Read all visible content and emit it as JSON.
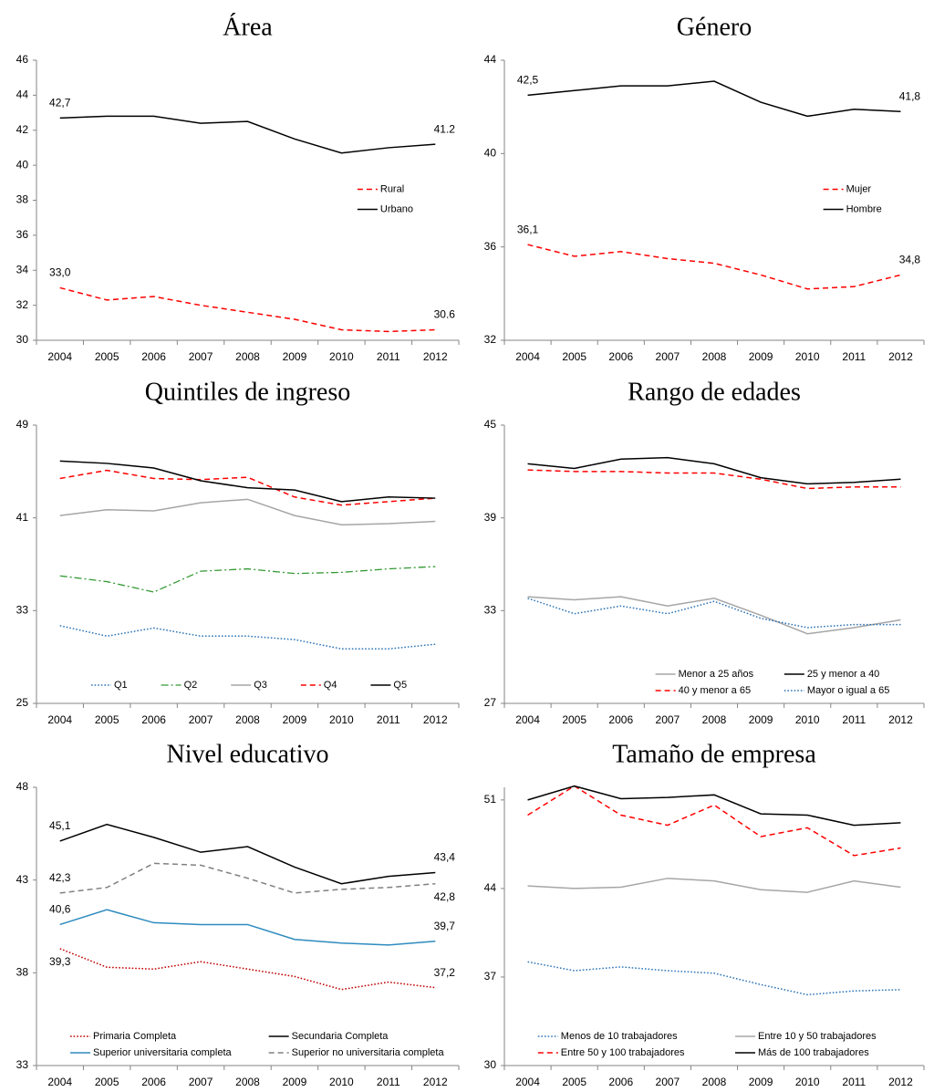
{
  "chart_data": [
    {
      "type": "line",
      "title": "Área",
      "categories": [
        "2004",
        "2005",
        "2006",
        "2007",
        "2008",
        "2009",
        "2010",
        "2011",
        "2012"
      ],
      "ylim": [
        30,
        46
      ],
      "yticks": [
        30,
        32,
        34,
        36,
        38,
        40,
        42,
        44,
        46
      ],
      "legend": "right",
      "series": [
        {
          "name": "Rural",
          "color": "#ff0000",
          "dash": "dash",
          "values": [
            33.0,
            32.3,
            32.5,
            32.0,
            31.6,
            31.2,
            30.6,
            30.5,
            30.6
          ],
          "value_labels": [
            "33,0",
            null,
            null,
            null,
            null,
            null,
            null,
            null,
            "30.6"
          ]
        },
        {
          "name": "Urbano",
          "color": "#000000",
          "dash": "solid",
          "values": [
            42.7,
            42.8,
            42.8,
            42.4,
            42.5,
            41.5,
            40.7,
            41.0,
            41.2
          ],
          "value_labels": [
            "42,7",
            null,
            null,
            null,
            null,
            null,
            null,
            null,
            "41.2"
          ]
        }
      ]
    },
    {
      "type": "line",
      "title": "Género",
      "categories": [
        "2004",
        "2005",
        "2006",
        "2007",
        "2008",
        "2009",
        "2010",
        "2011",
        "2012"
      ],
      "ylim": [
        32,
        44
      ],
      "yticks": [
        32,
        36,
        40,
        44
      ],
      "legend": "right",
      "series": [
        {
          "name": "Mujer",
          "color": "#ff0000",
          "dash": "dash",
          "values": [
            36.1,
            35.6,
            35.8,
            35.5,
            35.3,
            34.8,
            34.2,
            34.3,
            34.8
          ],
          "value_labels": [
            "36,1",
            null,
            null,
            null,
            null,
            null,
            null,
            null,
            "34,8"
          ]
        },
        {
          "name": "Hombre",
          "color": "#000000",
          "dash": "solid",
          "values": [
            42.5,
            42.7,
            42.9,
            42.9,
            43.1,
            42.2,
            41.6,
            41.9,
            41.8
          ],
          "value_labels": [
            "42,5",
            null,
            null,
            null,
            null,
            null,
            null,
            null,
            "41,8"
          ]
        }
      ]
    },
    {
      "type": "line",
      "title": "Quintiles de ingreso",
      "categories": [
        "2004",
        "2005",
        "2006",
        "2007",
        "2008",
        "2009",
        "2010",
        "2011",
        "2012"
      ],
      "ylim": [
        25,
        49
      ],
      "yticks": [
        25,
        33,
        41,
        49
      ],
      "legend": "bottom",
      "series": [
        {
          "name": "Q1",
          "color": "#2e75b6",
          "dash": "dot",
          "values": [
            31.7,
            30.8,
            31.5,
            30.8,
            30.8,
            30.5,
            29.7,
            29.7,
            30.1
          ]
        },
        {
          "name": "Q2",
          "color": "#339933",
          "dash": "dashdot",
          "values": [
            36.0,
            35.5,
            34.6,
            36.4,
            36.6,
            36.2,
            36.3,
            36.6,
            36.8
          ]
        },
        {
          "name": "Q3",
          "color": "#a6a6a6",
          "dash": "solid",
          "values": [
            41.2,
            41.7,
            41.6,
            42.3,
            42.6,
            41.2,
            40.4,
            40.5,
            40.7
          ]
        },
        {
          "name": "Q4",
          "color": "#ff0000",
          "dash": "dash",
          "values": [
            44.4,
            45.1,
            44.4,
            44.3,
            44.5,
            42.8,
            42.1,
            42.4,
            42.7
          ]
        },
        {
          "name": "Q5",
          "color": "#000000",
          "dash": "solid",
          "values": [
            45.9,
            45.7,
            45.3,
            44.2,
            43.6,
            43.4,
            42.4,
            42.8,
            42.7
          ]
        }
      ]
    },
    {
      "type": "line",
      "title": "Rango de edades",
      "categories": [
        "2004",
        "2005",
        "2006",
        "2007",
        "2008",
        "2009",
        "2010",
        "2011",
        "2012"
      ],
      "ylim": [
        27,
        45
      ],
      "yticks": [
        27,
        33,
        39,
        45
      ],
      "legend": "bottom-right",
      "series": [
        {
          "name": "Menor a 25 años",
          "color": "#a6a6a6",
          "dash": "solid",
          "values": [
            33.9,
            33.7,
            33.9,
            33.3,
            33.8,
            32.7,
            31.5,
            31.9,
            32.4
          ]
        },
        {
          "name": "25 y menor a 40",
          "color": "#000000",
          "dash": "solid",
          "values": [
            42.5,
            42.2,
            42.8,
            42.9,
            42.5,
            41.6,
            41.2,
            41.3,
            41.5
          ]
        },
        {
          "name": "40 y menor a 65",
          "color": "#ff0000",
          "dash": "dash",
          "values": [
            42.1,
            42.0,
            42.0,
            41.9,
            41.9,
            41.5,
            40.9,
            41.0,
            41.0
          ]
        },
        {
          "name": "Mayor o igual a 65",
          "color": "#2e75b6",
          "dash": "dot",
          "values": [
            33.8,
            32.8,
            33.3,
            32.8,
            33.6,
            32.5,
            31.9,
            32.1,
            32.1
          ]
        }
      ]
    },
    {
      "type": "line",
      "title": "Nivel educativo",
      "categories": [
        "2004",
        "2005",
        "2006",
        "2007",
        "2008",
        "2009",
        "2010",
        "2011",
        "2012"
      ],
      "ylim": [
        33,
        48
      ],
      "yticks": [
        33,
        38,
        43,
        48
      ],
      "legend": "bottom",
      "series": [
        {
          "name": "Primaria Completa",
          "color": "#c00000",
          "dash": "dot",
          "values": [
            39.3,
            38.3,
            38.2,
            38.6,
            38.2,
            37.8,
            37.1,
            37.5,
            37.2
          ],
          "value_labels": [
            "39,3",
            null,
            null,
            null,
            null,
            null,
            null,
            null,
            "37,2"
          ]
        },
        {
          "name": "Secundaria Completa",
          "color": "#000000",
          "dash": "solid",
          "values": [
            45.1,
            46.0,
            45.3,
            44.5,
            44.8,
            43.7,
            42.8,
            43.2,
            43.4
          ],
          "value_labels": [
            "45,1",
            null,
            null,
            null,
            null,
            null,
            null,
            null,
            "43,4"
          ]
        },
        {
          "name": "Superior universitaria completa",
          "color": "#2e8bc0",
          "dash": "solid",
          "values": [
            40.6,
            41.4,
            40.7,
            40.6,
            40.6,
            39.8,
            39.6,
            39.5,
            39.7
          ],
          "value_labels": [
            "40,6",
            null,
            null,
            null,
            null,
            null,
            null,
            null,
            "39,7"
          ]
        },
        {
          "name": "Superior no universitaria completa",
          "color": "#808080",
          "dash": "dash",
          "values": [
            42.3,
            42.6,
            43.9,
            43.8,
            43.1,
            42.3,
            42.5,
            42.6,
            42.8
          ],
          "value_labels": [
            "42,3",
            null,
            null,
            null,
            null,
            null,
            null,
            null,
            "42,8"
          ]
        }
      ]
    },
    {
      "type": "line",
      "title": "Tamaño de empresa",
      "categories": [
        "2004",
        "2005",
        "2006",
        "2007",
        "2008",
        "2009",
        "2010",
        "2011",
        "2012"
      ],
      "ylim": [
        30,
        52
      ],
      "yticks": [
        30,
        37,
        44,
        51
      ],
      "legend": "bottom",
      "series": [
        {
          "name": "Menos de 10 trabajadores",
          "color": "#2e75b6",
          "dash": "dot",
          "values": [
            38.2,
            37.5,
            37.8,
            37.5,
            37.3,
            36.4,
            35.6,
            35.9,
            36.0
          ]
        },
        {
          "name": "Entre 10 y 50 trabajadores",
          "color": "#a6a6a6",
          "dash": "solid",
          "values": [
            44.2,
            44.0,
            44.1,
            44.8,
            44.6,
            43.9,
            43.7,
            44.6,
            44.1
          ]
        },
        {
          "name": "Entre 50 y 100 trabajadores",
          "color": "#ff0000",
          "dash": "dash",
          "values": [
            49.8,
            52.1,
            49.8,
            49.0,
            50.6,
            48.1,
            48.8,
            46.6,
            47.2
          ]
        },
        {
          "name": "Más de 100 trabajadores",
          "color": "#000000",
          "dash": "solid",
          "values": [
            51.0,
            52.1,
            51.1,
            51.2,
            51.4,
            49.9,
            49.8,
            49.0,
            49.2
          ]
        }
      ]
    }
  ]
}
